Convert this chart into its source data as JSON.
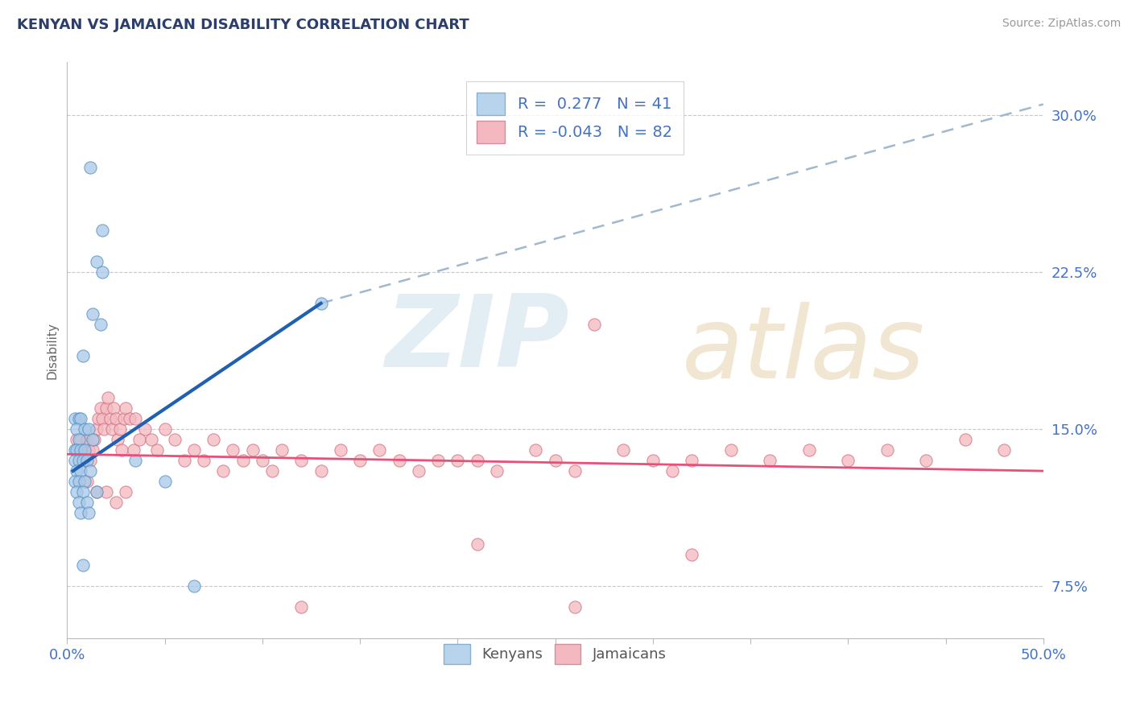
{
  "title": "KENYAN VS JAMAICAN DISABILITY CORRELATION CHART",
  "source": "Source: ZipAtlas.com",
  "ylabel": "Disability",
  "xlim": [
    0.0,
    50.0
  ],
  "ylim": [
    5.0,
    32.5
  ],
  "yticks": [
    7.5,
    15.0,
    22.5,
    30.0
  ],
  "xticks": [
    0.0,
    5.0,
    10.0,
    15.0,
    20.0,
    25.0,
    30.0,
    35.0,
    40.0,
    45.0,
    50.0
  ],
  "r_kenyan": 0.277,
  "n_kenyan": 41,
  "r_jamaican": -0.043,
  "n_jamaican": 82,
  "kenyan_color": "#a8c8e8",
  "jamaican_color": "#f4b8c0",
  "kenyan_line_color": "#2060b0",
  "jamaican_line_color": "#e8507a",
  "dashed_line_color": "#a0b8d0",
  "background_color": "#ffffff",
  "grid_color": "#c8c8c8",
  "title_color": "#2c3e6b",
  "axis_label_color": "#4472c4",
  "kenyan_line_x": [
    0.3,
    13.0
  ],
  "kenyan_line_y": [
    13.0,
    21.0
  ],
  "jamaican_line_x": [
    0.0,
    50.0
  ],
  "jamaican_line_y": [
    13.8,
    13.0
  ],
  "dash_line_x": [
    13.0,
    50.0
  ],
  "dash_line_y": [
    21.0,
    30.5
  ],
  "kenyan_scatter": [
    [
      1.2,
      27.5
    ],
    [
      1.8,
      24.5
    ],
    [
      1.5,
      23.0
    ],
    [
      1.8,
      22.5
    ],
    [
      1.3,
      20.5
    ],
    [
      1.7,
      20.0
    ],
    [
      0.8,
      18.5
    ],
    [
      0.4,
      15.5
    ],
    [
      0.6,
      15.5
    ],
    [
      0.7,
      15.5
    ],
    [
      0.5,
      15.0
    ],
    [
      0.9,
      15.0
    ],
    [
      1.1,
      15.0
    ],
    [
      0.6,
      14.5
    ],
    [
      1.3,
      14.5
    ],
    [
      0.4,
      14.0
    ],
    [
      0.5,
      14.0
    ],
    [
      0.7,
      14.0
    ],
    [
      0.9,
      14.0
    ],
    [
      0.4,
      13.5
    ],
    [
      0.6,
      13.5
    ],
    [
      0.8,
      13.5
    ],
    [
      1.0,
      13.5
    ],
    [
      0.5,
      13.0
    ],
    [
      0.7,
      13.0
    ],
    [
      1.2,
      13.0
    ],
    [
      0.4,
      12.5
    ],
    [
      0.6,
      12.5
    ],
    [
      0.9,
      12.5
    ],
    [
      0.5,
      12.0
    ],
    [
      0.8,
      12.0
    ],
    [
      1.5,
      12.0
    ],
    [
      0.6,
      11.5
    ],
    [
      1.0,
      11.5
    ],
    [
      0.7,
      11.0
    ],
    [
      1.1,
      11.0
    ],
    [
      3.5,
      13.5
    ],
    [
      5.0,
      12.5
    ],
    [
      6.5,
      7.5
    ],
    [
      13.0,
      21.0
    ],
    [
      0.8,
      8.5
    ]
  ],
  "jamaican_scatter": [
    [
      0.5,
      14.5
    ],
    [
      0.6,
      14.0
    ],
    [
      0.7,
      14.5
    ],
    [
      0.8,
      14.0
    ],
    [
      0.9,
      13.5
    ],
    [
      1.0,
      14.5
    ],
    [
      1.1,
      14.0
    ],
    [
      1.2,
      13.5
    ],
    [
      1.3,
      14.0
    ],
    [
      1.4,
      14.5
    ],
    [
      1.5,
      15.0
    ],
    [
      1.6,
      15.5
    ],
    [
      1.7,
      16.0
    ],
    [
      1.8,
      15.5
    ],
    [
      1.9,
      15.0
    ],
    [
      2.0,
      16.0
    ],
    [
      2.1,
      16.5
    ],
    [
      2.2,
      15.5
    ],
    [
      2.3,
      15.0
    ],
    [
      2.4,
      16.0
    ],
    [
      2.5,
      15.5
    ],
    [
      2.6,
      14.5
    ],
    [
      2.7,
      15.0
    ],
    [
      2.8,
      14.0
    ],
    [
      2.9,
      15.5
    ],
    [
      3.0,
      16.0
    ],
    [
      3.2,
      15.5
    ],
    [
      3.4,
      14.0
    ],
    [
      3.5,
      15.5
    ],
    [
      3.7,
      14.5
    ],
    [
      4.0,
      15.0
    ],
    [
      4.3,
      14.5
    ],
    [
      4.6,
      14.0
    ],
    [
      5.0,
      15.0
    ],
    [
      5.5,
      14.5
    ],
    [
      6.0,
      13.5
    ],
    [
      6.5,
      14.0
    ],
    [
      7.0,
      13.5
    ],
    [
      7.5,
      14.5
    ],
    [
      8.0,
      13.0
    ],
    [
      8.5,
      14.0
    ],
    [
      9.0,
      13.5
    ],
    [
      9.5,
      14.0
    ],
    [
      10.0,
      13.5
    ],
    [
      10.5,
      13.0
    ],
    [
      11.0,
      14.0
    ],
    [
      12.0,
      13.5
    ],
    [
      13.0,
      13.0
    ],
    [
      14.0,
      14.0
    ],
    [
      15.0,
      13.5
    ],
    [
      16.0,
      14.0
    ],
    [
      17.0,
      13.5
    ],
    [
      18.0,
      13.0
    ],
    [
      19.0,
      13.5
    ],
    [
      20.0,
      13.5
    ],
    [
      21.0,
      13.5
    ],
    [
      22.0,
      13.0
    ],
    [
      24.0,
      14.0
    ],
    [
      25.0,
      13.5
    ],
    [
      26.0,
      13.0
    ],
    [
      27.0,
      20.0
    ],
    [
      28.5,
      14.0
    ],
    [
      30.0,
      13.5
    ],
    [
      31.0,
      13.0
    ],
    [
      32.0,
      13.5
    ],
    [
      34.0,
      14.0
    ],
    [
      36.0,
      13.5
    ],
    [
      38.0,
      14.0
    ],
    [
      40.0,
      13.5
    ],
    [
      42.0,
      14.0
    ],
    [
      44.0,
      13.5
    ],
    [
      46.0,
      14.5
    ],
    [
      48.0,
      14.0
    ],
    [
      1.0,
      12.5
    ],
    [
      1.5,
      12.0
    ],
    [
      2.0,
      12.0
    ],
    [
      2.5,
      11.5
    ],
    [
      3.0,
      12.0
    ],
    [
      21.0,
      9.5
    ],
    [
      32.0,
      9.0
    ],
    [
      12.0,
      6.5
    ],
    [
      26.0,
      6.5
    ]
  ]
}
